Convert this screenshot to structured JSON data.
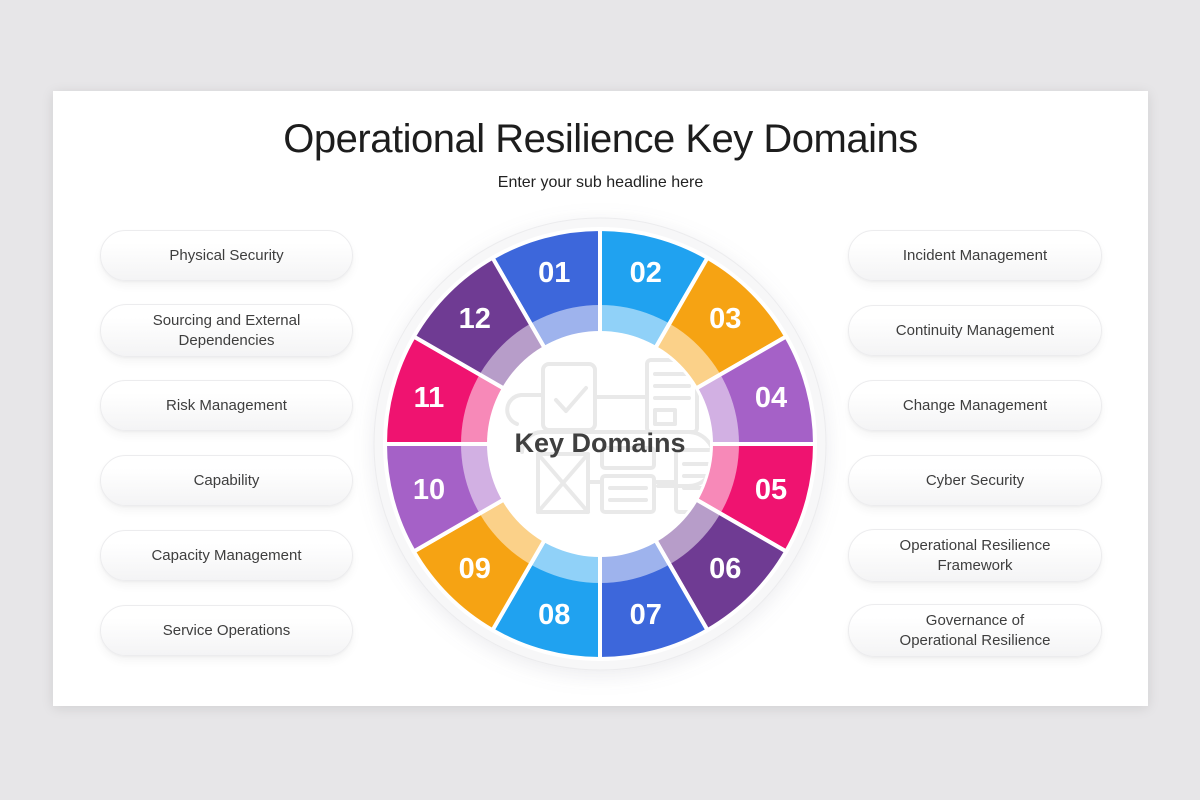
{
  "slide": {
    "title": "Operational Resilience Key Domains",
    "subtitle": "Enter your sub headline here"
  },
  "left_items": [
    "Physical Security",
    "Sourcing and External\nDependencies",
    "Risk Management",
    "Capability",
    "Capacity Management",
    "Service Operations"
  ],
  "right_items": [
    "Incident Management",
    "Continuity Management",
    "Change Management",
    "Cyber Security",
    "Operational Resilience\nFramework",
    "Governance of\nOperational Resilience"
  ],
  "donut": {
    "center_label": "Key Domains",
    "watermark_icon": "documents-checklist-watermark",
    "colors": {
      "blue": "#3d67db",
      "light_blue": "#20a2f0",
      "orange": "#f6a313",
      "purple": "#a561c7",
      "pink": "#ef1370",
      "dark_purple": "#6f3b93",
      "separator": "#ffffff",
      "rim": "#f7f7f8",
      "number_text": "#ffffff"
    },
    "segments": [
      {
        "num": "01",
        "color": "#3d67db"
      },
      {
        "num": "02",
        "color": "#20a2f0"
      },
      {
        "num": "03",
        "color": "#f6a313"
      },
      {
        "num": "04",
        "color": "#a561c7"
      },
      {
        "num": "05",
        "color": "#ef1370"
      },
      {
        "num": "06",
        "color": "#6f3b93"
      },
      {
        "num": "07",
        "color": "#3d67db"
      },
      {
        "num": "08",
        "color": "#20a2f0"
      },
      {
        "num": "09",
        "color": "#f6a313"
      },
      {
        "num": "10",
        "color": "#a561c7"
      },
      {
        "num": "11",
        "color": "#ef1370"
      },
      {
        "num": "12",
        "color": "#6f3b93"
      }
    ]
  }
}
